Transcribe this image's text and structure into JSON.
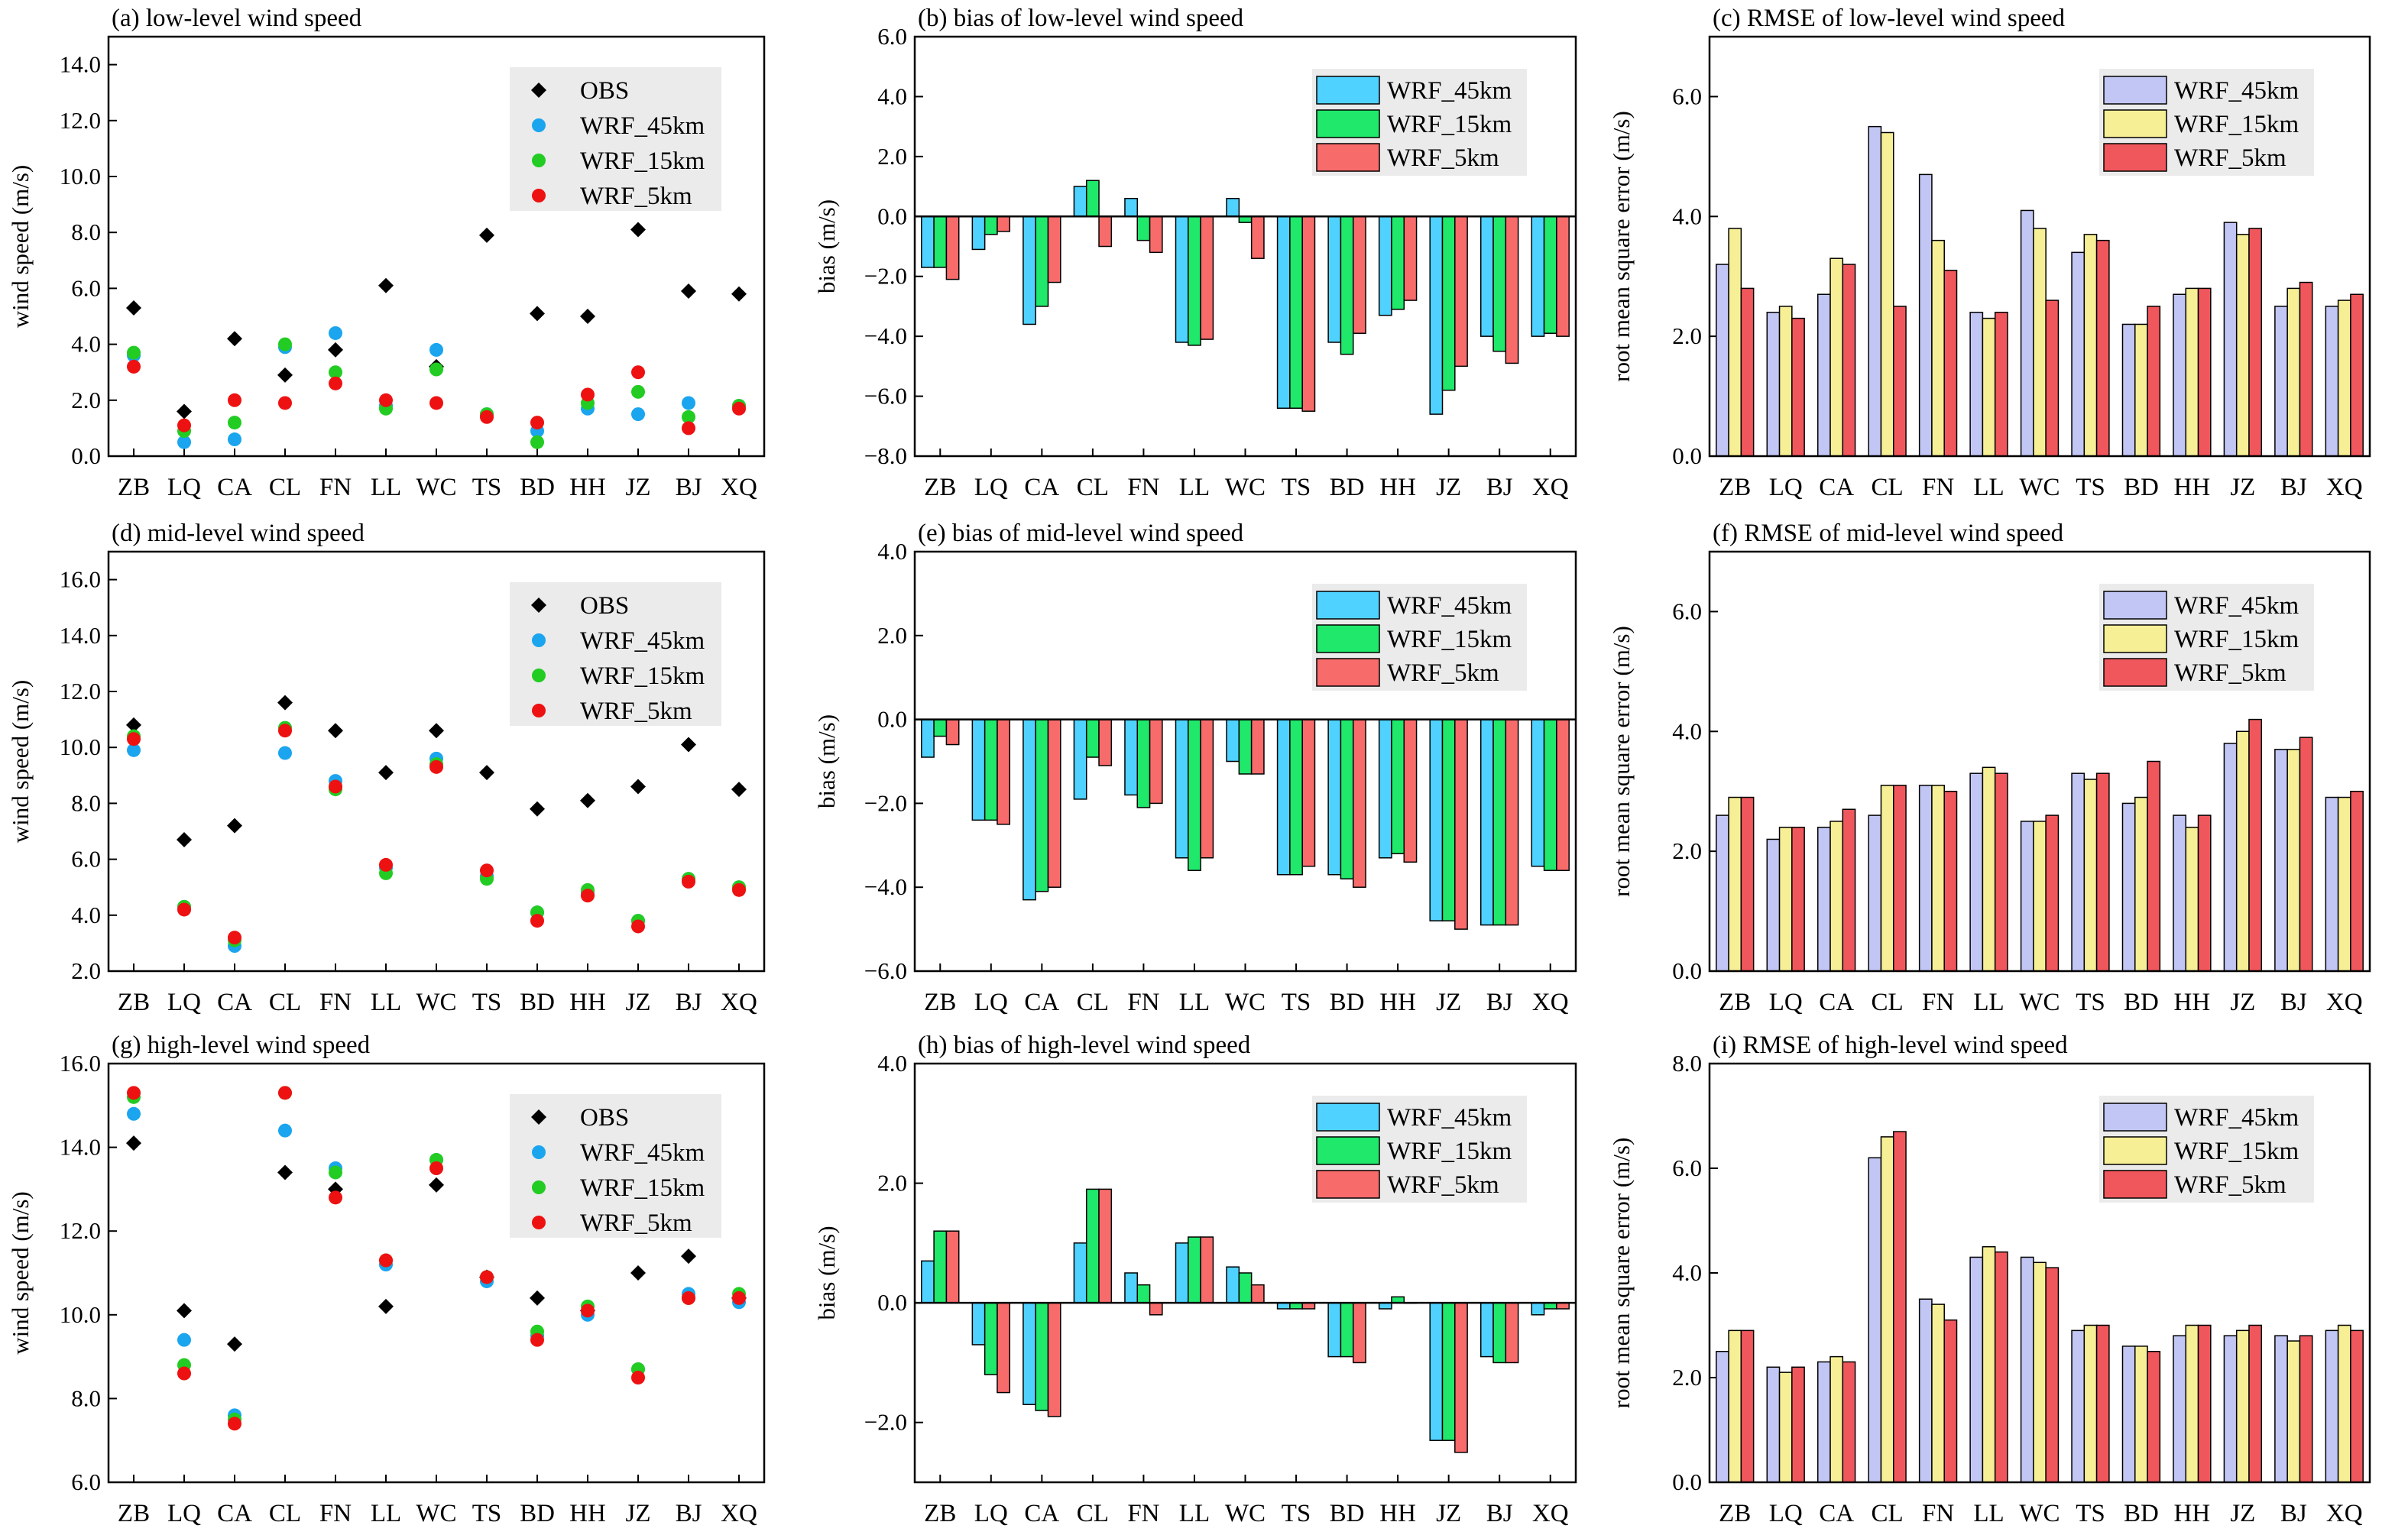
{
  "colors": {
    "obs": "#000000",
    "dot45": "#1aa5ee",
    "dot15": "#22cc22",
    "dot5": "#ee1111",
    "bias45": "#4fd2ff",
    "bias15": "#1fe86a",
    "bias5": "#f86b6b",
    "rmse45": "#c2c6f4",
    "rmse15": "#f6ef96",
    "rmse5": "#f0575c",
    "legend_bg": "#ebebeb"
  },
  "legend_labels": {
    "scatter": [
      "OBS",
      "WRF_45km",
      "WRF_15km",
      "WRF_5km"
    ],
    "bars": [
      "WRF_45km",
      "WRF_15km",
      "WRF_5km"
    ]
  },
  "chart_data": [
    {
      "id": "a",
      "type": "scatter",
      "title": "(a) low-level wind speed",
      "xlabel": "",
      "ylabel": "wind speed (m/s)",
      "categories": [
        "ZB",
        "LQ",
        "CA",
        "CL",
        "FN",
        "LL",
        "WC",
        "TS",
        "BD",
        "HH",
        "JZ",
        "BJ",
        "XQ"
      ],
      "ylim": [
        0,
        15
      ],
      "yticks": [
        "0.0",
        "2.0",
        "4.0",
        "6.0",
        "8.0",
        "10.0",
        "12.0",
        "14.0"
      ],
      "series": [
        {
          "name": "OBS",
          "values": [
            5.3,
            1.6,
            4.2,
            2.9,
            3.8,
            6.1,
            3.2,
            7.9,
            5.1,
            5.0,
            8.1,
            5.9,
            5.8
          ]
        },
        {
          "name": "WRF_45km",
          "values": [
            3.6,
            0.5,
            0.6,
            3.9,
            4.4,
            1.8,
            3.8,
            1.5,
            0.9,
            1.7,
            1.5,
            1.9,
            1.8
          ]
        },
        {
          "name": "WRF_15km",
          "values": [
            3.7,
            0.9,
            1.2,
            4.0,
            3.0,
            1.7,
            3.1,
            1.5,
            0.5,
            1.9,
            2.3,
            1.4,
            1.8
          ]
        },
        {
          "name": "WRF_5km",
          "values": [
            3.2,
            1.1,
            2.0,
            1.9,
            2.6,
            2.0,
            1.9,
            1.4,
            1.2,
            2.2,
            3.0,
            1.0,
            1.7
          ]
        }
      ]
    },
    {
      "id": "b",
      "type": "bar",
      "title": "(b) bias of low-level wind speed",
      "xlabel": "",
      "ylabel": "bias (m/s)",
      "categories": [
        "ZB",
        "LQ",
        "CA",
        "CL",
        "FN",
        "LL",
        "WC",
        "TS",
        "BD",
        "HH",
        "JZ",
        "BJ",
        "XQ"
      ],
      "ylim": [
        -8,
        6
      ],
      "yticks": [
        "−8.0",
        "−6.0",
        "−4.0",
        "−2.0",
        "0.0",
        "2.0",
        "4.0",
        "6.0"
      ],
      "series": [
        {
          "name": "WRF_45km",
          "values": [
            -1.7,
            -1.1,
            -3.6,
            1.0,
            0.6,
            -4.2,
            0.6,
            -6.4,
            -4.2,
            -3.3,
            -6.6,
            -4.0,
            -4.0
          ]
        },
        {
          "name": "WRF_15km",
          "values": [
            -1.7,
            -0.6,
            -3.0,
            1.2,
            -0.8,
            -4.3,
            -0.2,
            -6.4,
            -4.6,
            -3.1,
            -5.8,
            -4.5,
            -3.9
          ]
        },
        {
          "name": "WRF_5km",
          "values": [
            -2.1,
            -0.5,
            -2.2,
            -1.0,
            -1.2,
            -4.1,
            -1.4,
            -6.5,
            -3.9,
            -2.8,
            -5.0,
            -4.9,
            -4.0
          ]
        }
      ]
    },
    {
      "id": "c",
      "type": "bar",
      "title": "(c) RMSE of low-level wind speed",
      "xlabel": "",
      "ylabel": "root mean square error (m/s)",
      "categories": [
        "ZB",
        "LQ",
        "CA",
        "CL",
        "FN",
        "LL",
        "WC",
        "TS",
        "BD",
        "HH",
        "JZ",
        "BJ",
        "XQ"
      ],
      "ylim": [
        0,
        7
      ],
      "yticks": [
        "0.0",
        "2.0",
        "4.0",
        "6.0"
      ],
      "series": [
        {
          "name": "WRF_45km",
          "values": [
            3.2,
            2.4,
            2.7,
            5.5,
            4.7,
            2.4,
            4.1,
            3.4,
            2.2,
            2.7,
            3.9,
            2.5,
            2.5
          ]
        },
        {
          "name": "WRF_15km",
          "values": [
            3.8,
            2.5,
            3.3,
            5.4,
            3.6,
            2.3,
            3.8,
            3.7,
            2.2,
            2.8,
            3.7,
            2.8,
            2.6
          ]
        },
        {
          "name": "WRF_5km",
          "values": [
            2.8,
            2.3,
            3.2,
            2.5,
            3.1,
            2.4,
            2.6,
            3.6,
            2.5,
            2.8,
            3.8,
            2.9,
            2.7
          ]
        }
      ]
    },
    {
      "id": "d",
      "type": "scatter",
      "title": "(d) mid-level wind speed",
      "xlabel": "",
      "ylabel": "wind speed (m/s)",
      "categories": [
        "ZB",
        "LQ",
        "CA",
        "CL",
        "FN",
        "LL",
        "WC",
        "TS",
        "BD",
        "HH",
        "JZ",
        "BJ",
        "XQ"
      ],
      "ylim": [
        2,
        17
      ],
      "yticks": [
        "2.0",
        "4.0",
        "6.0",
        "8.0",
        "10.0",
        "12.0",
        "14.0",
        "16.0"
      ],
      "series": [
        {
          "name": "OBS",
          "values": [
            10.8,
            6.7,
            7.2,
            11.6,
            10.6,
            9.1,
            10.6,
            9.1,
            7.8,
            8.1,
            8.6,
            10.1,
            8.5
          ]
        },
        {
          "name": "WRF_45km",
          "values": [
            9.9,
            4.3,
            2.9,
            9.8,
            8.8,
            5.7,
            9.6,
            5.4,
            4.1,
            4.8,
            3.8,
            5.3,
            5.0
          ]
        },
        {
          "name": "WRF_15km",
          "values": [
            10.4,
            4.3,
            3.1,
            10.7,
            8.5,
            5.5,
            9.4,
            5.3,
            4.1,
            4.9,
            3.8,
            5.3,
            5.0
          ]
        },
        {
          "name": "WRF_5km",
          "values": [
            10.3,
            4.2,
            3.2,
            10.6,
            8.6,
            5.8,
            9.3,
            5.6,
            3.8,
            4.7,
            3.6,
            5.2,
            4.9
          ]
        }
      ]
    },
    {
      "id": "e",
      "type": "bar",
      "title": "(e) bias of mid-level wind speed",
      "xlabel": "",
      "ylabel": "bias (m/s)",
      "categories": [
        "ZB",
        "LQ",
        "CA",
        "CL",
        "FN",
        "LL",
        "WC",
        "TS",
        "BD",
        "HH",
        "JZ",
        "BJ",
        "XQ"
      ],
      "ylim": [
        -6,
        4
      ],
      "yticks": [
        "−6.0",
        "−4.0",
        "−2.0",
        "0.0",
        "2.0",
        "4.0"
      ],
      "series": [
        {
          "name": "WRF_45km",
          "values": [
            -0.9,
            -2.4,
            -4.3,
            -1.9,
            -1.8,
            -3.3,
            -1.0,
            -3.7,
            -3.7,
            -3.3,
            -4.8,
            -4.9,
            -3.5
          ]
        },
        {
          "name": "WRF_15km",
          "values": [
            -0.4,
            -2.4,
            -4.1,
            -0.9,
            -2.1,
            -3.6,
            -1.3,
            -3.7,
            -3.8,
            -3.2,
            -4.8,
            -4.9,
            -3.6
          ]
        },
        {
          "name": "WRF_5km",
          "values": [
            -0.6,
            -2.5,
            -4.0,
            -1.1,
            -2.0,
            -3.3,
            -1.3,
            -3.5,
            -4.0,
            -3.4,
            -5.0,
            -4.9,
            -3.6
          ]
        }
      ]
    },
    {
      "id": "f",
      "type": "bar",
      "title": "(f) RMSE of mid-level wind speed",
      "xlabel": "",
      "ylabel": "root mean square error (m/s)",
      "categories": [
        "ZB",
        "LQ",
        "CA",
        "CL",
        "FN",
        "LL",
        "WC",
        "TS",
        "BD",
        "HH",
        "JZ",
        "BJ",
        "XQ"
      ],
      "ylim": [
        0,
        7
      ],
      "yticks": [
        "0.0",
        "2.0",
        "4.0",
        "6.0"
      ],
      "series": [
        {
          "name": "WRF_45km",
          "values": [
            2.6,
            2.2,
            2.4,
            2.6,
            3.1,
            3.3,
            2.5,
            3.3,
            2.8,
            2.6,
            3.8,
            3.7,
            2.9
          ]
        },
        {
          "name": "WRF_15km",
          "values": [
            2.9,
            2.4,
            2.5,
            3.1,
            3.1,
            3.4,
            2.5,
            3.2,
            2.9,
            2.4,
            4.0,
            3.7,
            2.9
          ]
        },
        {
          "name": "WRF_5km",
          "values": [
            2.9,
            2.4,
            2.7,
            3.1,
            3.0,
            3.3,
            2.6,
            3.3,
            3.5,
            2.6,
            4.2,
            3.9,
            3.0
          ]
        }
      ]
    },
    {
      "id": "g",
      "type": "scatter",
      "title": "(g) high-level wind speed",
      "xlabel": "",
      "ylabel": "wind speed (m/s)",
      "categories": [
        "ZB",
        "LQ",
        "CA",
        "CL",
        "FN",
        "LL",
        "WC",
        "TS",
        "BD",
        "HH",
        "JZ",
        "BJ",
        "XQ"
      ],
      "ylim": [
        6,
        16
      ],
      "yticks": [
        "6.0",
        "8.0",
        "10.0",
        "12.0",
        "14.0",
        "16.0"
      ],
      "series": [
        {
          "name": "OBS",
          "values": [
            14.1,
            10.1,
            9.3,
            13.4,
            13.0,
            10.2,
            13.1,
            10.9,
            10.4,
            10.1,
            11.0,
            11.4,
            10.4
          ]
        },
        {
          "name": "WRF_45km",
          "values": [
            14.8,
            9.4,
            7.6,
            14.4,
            13.5,
            11.2,
            13.7,
            10.8,
            9.5,
            10.0,
            8.7,
            10.5,
            10.3
          ]
        },
        {
          "name": "WRF_15km",
          "values": [
            15.2,
            8.8,
            7.5,
            15.3,
            13.4,
            11.3,
            13.7,
            10.9,
            9.6,
            10.2,
            8.7,
            10.4,
            10.5
          ]
        },
        {
          "name": "WRF_5km",
          "values": [
            15.3,
            8.6,
            7.4,
            15.3,
            12.8,
            11.3,
            13.5,
            10.9,
            9.4,
            10.1,
            8.5,
            10.4,
            10.4
          ]
        }
      ]
    },
    {
      "id": "h",
      "type": "bar",
      "title": "(h) bias of high-level wind speed",
      "xlabel": "",
      "ylabel": "bias (m/s)",
      "categories": [
        "ZB",
        "LQ",
        "CA",
        "CL",
        "FN",
        "LL",
        "WC",
        "TS",
        "BD",
        "HH",
        "JZ",
        "BJ",
        "XQ"
      ],
      "ylim": [
        -3,
        4
      ],
      "yticks": [
        "−2.0",
        "0.0",
        "2.0",
        "4.0"
      ],
      "series": [
        {
          "name": "WRF_45km",
          "values": [
            0.7,
            -0.7,
            -1.7,
            1.0,
            0.5,
            1.0,
            0.6,
            -0.1,
            -0.9,
            -0.1,
            -2.3,
            -0.9,
            -0.2
          ]
        },
        {
          "name": "WRF_15km",
          "values": [
            1.2,
            -1.2,
            -1.8,
            1.9,
            0.3,
            1.1,
            0.5,
            -0.1,
            -0.9,
            0.1,
            -2.3,
            -1.0,
            -0.1
          ]
        },
        {
          "name": "WRF_5km",
          "values": [
            1.2,
            -1.5,
            -1.9,
            1.9,
            -0.2,
            1.1,
            0.3,
            -0.1,
            -1.0,
            0.0,
            -2.5,
            -1.0,
            -0.1
          ]
        }
      ]
    },
    {
      "id": "i",
      "type": "bar",
      "title": "(i) RMSE of high-level wind speed",
      "xlabel": "",
      "ylabel": "root mean square error (m/s)",
      "categories": [
        "ZB",
        "LQ",
        "CA",
        "CL",
        "FN",
        "LL",
        "WC",
        "TS",
        "BD",
        "HH",
        "JZ",
        "BJ",
        "XQ"
      ],
      "ylim": [
        0,
        8
      ],
      "yticks": [
        "0.0",
        "2.0",
        "4.0",
        "6.0",
        "8.0"
      ],
      "series": [
        {
          "name": "WRF_45km",
          "values": [
            2.5,
            2.2,
            2.3,
            6.2,
            3.5,
            4.3,
            4.3,
            2.9,
            2.6,
            2.8,
            2.8,
            2.8,
            2.9
          ]
        },
        {
          "name": "WRF_15km",
          "values": [
            2.9,
            2.1,
            2.4,
            6.6,
            3.4,
            4.5,
            4.2,
            3.0,
            2.6,
            3.0,
            2.9,
            2.7,
            3.0
          ]
        },
        {
          "name": "WRF_5km",
          "values": [
            2.9,
            2.2,
            2.3,
            6.7,
            3.1,
            4.4,
            4.1,
            3.0,
            2.5,
            3.0,
            3.0,
            2.8,
            2.9
          ]
        }
      ]
    }
  ]
}
